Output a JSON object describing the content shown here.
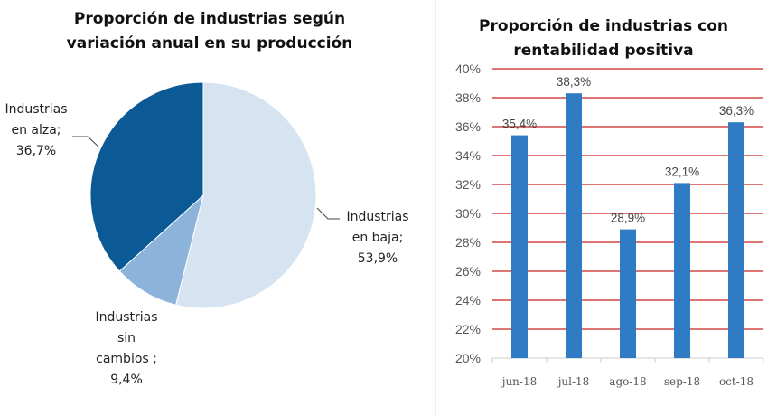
{
  "chart_data": [
    {
      "type": "pie",
      "title_lines": [
        "Proporción  de industrias según",
        "variación anual  en su producción"
      ],
      "slices": [
        {
          "label_lines": [
            "Industrias",
            "en baja;",
            "53,9%"
          ],
          "value": 53.9,
          "color": "#d6e4f2"
        },
        {
          "label_lines": [
            "Industrias",
            "sin",
            "cambios ;",
            "9,4%"
          ],
          "value": 9.4,
          "color": "#8cb4db"
        },
        {
          "label_lines": [
            "Industrias",
            "en alza;",
            "36,7%"
          ],
          "value": 36.7,
          "color": "#0b5a96"
        }
      ]
    },
    {
      "type": "bar",
      "title_lines": [
        "Proporción  de industrias con",
        "rentabilidad positiva"
      ],
      "categories": [
        "jun-18",
        "jul-18",
        "ago-18",
        "sep-18",
        "oct-18"
      ],
      "values": [
        35.4,
        38.3,
        28.9,
        32.1,
        36.3
      ],
      "data_labels": [
        "35,4%",
        "38,3%",
        "28,9%",
        "32,1%",
        "36,3%"
      ],
      "ylim": [
        20,
        40
      ],
      "yticks": [
        "20%",
        "22%",
        "24%",
        "26%",
        "28%",
        "30%",
        "32%",
        "34%",
        "36%",
        "38%",
        "40%"
      ],
      "grid": true,
      "bar_color": "#2f7cc4",
      "grid_color": "#cc2222"
    }
  ]
}
